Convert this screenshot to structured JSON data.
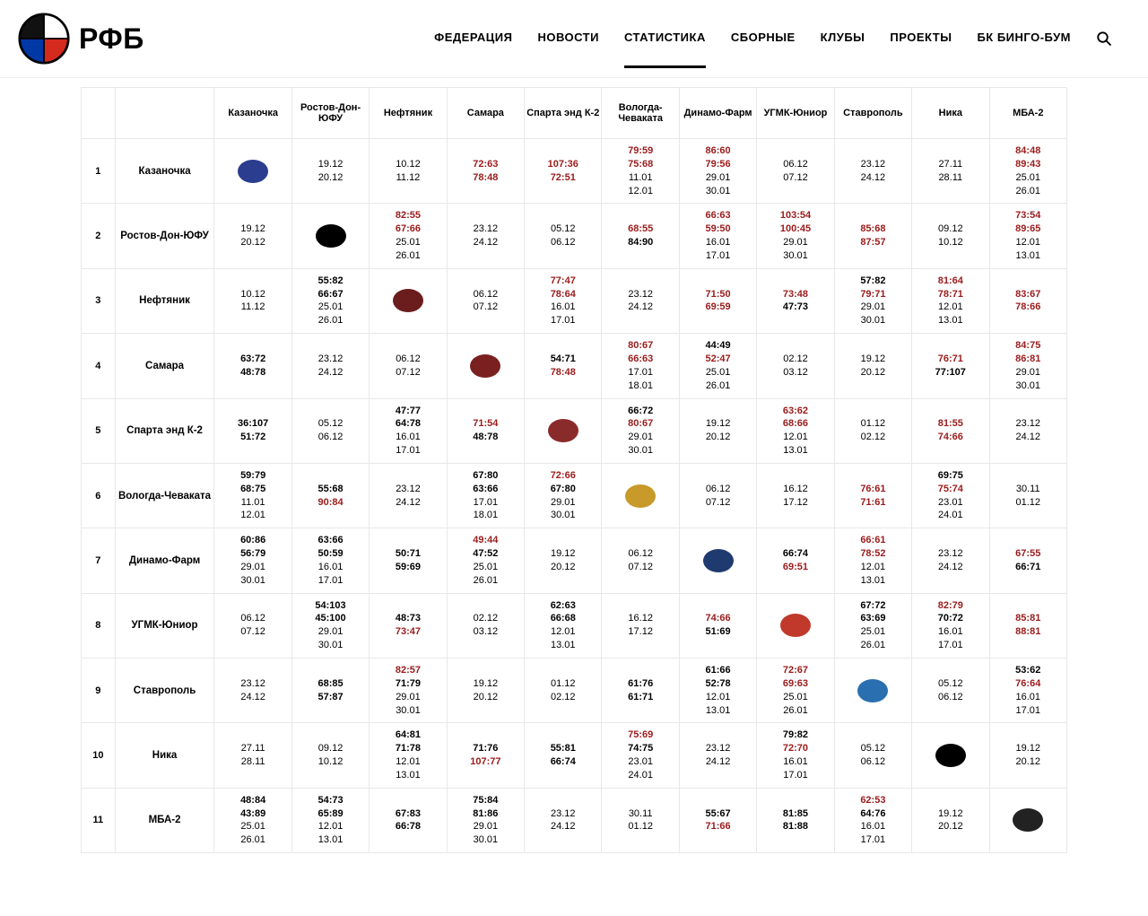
{
  "brand": "РФБ",
  "nav": {
    "items": [
      "ФЕДЕРАЦИЯ",
      "НОВОСТИ",
      "СТАТИСТИКА",
      "СБОРНЫЕ",
      "КЛУБЫ",
      "ПРОЕКТЫ",
      "БК БИНГО-БУМ"
    ],
    "active_index": 2
  },
  "colors": {
    "score_red": "#9a1b1b",
    "border": "#e8e8e8",
    "bg": "#ffffff",
    "text": "#000000"
  },
  "teams": [
    "Казаночка",
    "Ростов-Дон-ЮФУ",
    "Нефтяник",
    "Самара",
    "Спарта энд К-2",
    "Вологда-Чеваката",
    "Динамо-Фарм",
    "УГМК-Юниор",
    "Ставрополь",
    "Ника",
    "МБА-2"
  ],
  "team_logo_bg": [
    "#2a3d8f",
    "#000000",
    "#6b1d1d",
    "#7a2020",
    "#8a2b2b",
    "#c79a2a",
    "#1f3a6e",
    "#c0392b",
    "#2a6fb0",
    "#000000",
    "#222222"
  ],
  "grid": [
    [
      {
        "logo": true
      },
      {
        "dates": [
          "19.12",
          "20.12"
        ]
      },
      {
        "dates": [
          "10.12",
          "11.12"
        ]
      },
      {
        "scores": [
          "72:63",
          "78:48"
        ],
        "red": [
          true,
          true
        ]
      },
      {
        "scores": [
          "107:36",
          "72:51"
        ],
        "red": [
          true,
          true
        ]
      },
      {
        "scores": [
          "79:59",
          "75:68"
        ],
        "red": [
          true,
          true
        ],
        "dates": [
          "11.01",
          "12.01"
        ]
      },
      {
        "scores": [
          "86:60",
          "79:56"
        ],
        "red": [
          true,
          true
        ],
        "dates": [
          "29.01",
          "30.01"
        ]
      },
      {
        "dates": [
          "06.12",
          "07.12"
        ]
      },
      {
        "dates": [
          "23.12",
          "24.12"
        ]
      },
      {
        "dates": [
          "27.11",
          "28.11"
        ]
      },
      {
        "scores": [
          "84:48",
          "89:43"
        ],
        "red": [
          true,
          true
        ],
        "dates": [
          "25.01",
          "26.01"
        ]
      }
    ],
    [
      {
        "dates": [
          "19.12",
          "20.12"
        ]
      },
      {
        "logo": true
      },
      {
        "scores": [
          "82:55",
          "67:66"
        ],
        "red": [
          true,
          true
        ],
        "dates": [
          "25.01",
          "26.01"
        ]
      },
      {
        "dates": [
          "23.12",
          "24.12"
        ]
      },
      {
        "dates": [
          "05.12",
          "06.12"
        ]
      },
      {
        "scores": [
          "68:55",
          "84:90"
        ],
        "red": [
          true,
          false
        ]
      },
      {
        "scores": [
          "66:63",
          "59:50"
        ],
        "red": [
          true,
          true
        ],
        "dates": [
          "16.01",
          "17.01"
        ]
      },
      {
        "scores": [
          "103:54",
          "100:45"
        ],
        "red": [
          true,
          true
        ],
        "dates": [
          "29.01",
          "30.01"
        ]
      },
      {
        "scores": [
          "85:68",
          "87:57"
        ],
        "red": [
          true,
          true
        ]
      },
      {
        "dates": [
          "09.12",
          "10.12"
        ]
      },
      {
        "scores": [
          "73:54",
          "89:65"
        ],
        "red": [
          true,
          true
        ],
        "dates": [
          "12.01",
          "13.01"
        ]
      }
    ],
    [
      {
        "dates": [
          "10.12",
          "11.12"
        ]
      },
      {
        "scores": [
          "55:82",
          "66:67"
        ],
        "red": [
          false,
          false
        ],
        "dates": [
          "25.01",
          "26.01"
        ]
      },
      {
        "logo": true
      },
      {
        "dates": [
          "06.12",
          "07.12"
        ]
      },
      {
        "scores": [
          "77:47",
          "78:64"
        ],
        "red": [
          true,
          true
        ],
        "dates": [
          "16.01",
          "17.01"
        ]
      },
      {
        "dates": [
          "23.12",
          "24.12"
        ]
      },
      {
        "scores": [
          "71:50",
          "69:59"
        ],
        "red": [
          true,
          true
        ]
      },
      {
        "scores": [
          "73:48",
          "47:73"
        ],
        "red": [
          true,
          false
        ]
      },
      {
        "scores": [
          "57:82",
          "79:71"
        ],
        "red": [
          false,
          true
        ],
        "dates": [
          "29.01",
          "30.01"
        ]
      },
      {
        "scores": [
          "81:64",
          "78:71"
        ],
        "red": [
          true,
          true
        ],
        "dates": [
          "12.01",
          "13.01"
        ]
      },
      {
        "scores": [
          "83:67",
          "78:66"
        ],
        "red": [
          true,
          true
        ]
      }
    ],
    [
      {
        "scores": [
          "63:72",
          "48:78"
        ],
        "red": [
          false,
          false
        ]
      },
      {
        "dates": [
          "23.12",
          "24.12"
        ]
      },
      {
        "dates": [
          "06.12",
          "07.12"
        ]
      },
      {
        "logo": true
      },
      {
        "scores": [
          "54:71",
          "78:48"
        ],
        "red": [
          false,
          true
        ]
      },
      {
        "scores": [
          "80:67",
          "66:63"
        ],
        "red": [
          true,
          true
        ],
        "dates": [
          "17.01",
          "18.01"
        ]
      },
      {
        "scores": [
          "44:49",
          "52:47"
        ],
        "red": [
          false,
          true
        ],
        "dates": [
          "25.01",
          "26.01"
        ]
      },
      {
        "dates": [
          "02.12",
          "03.12"
        ]
      },
      {
        "dates": [
          "19.12",
          "20.12"
        ]
      },
      {
        "scores": [
          "76:71",
          "77:107"
        ],
        "red": [
          true,
          false
        ]
      },
      {
        "scores": [
          "84:75",
          "86:81"
        ],
        "red": [
          true,
          true
        ],
        "dates": [
          "29.01",
          "30.01"
        ]
      }
    ],
    [
      {
        "scores": [
          "36:107",
          "51:72"
        ],
        "red": [
          false,
          false
        ]
      },
      {
        "dates": [
          "05.12",
          "06.12"
        ]
      },
      {
        "scores": [
          "47:77",
          "64:78"
        ],
        "red": [
          false,
          false
        ],
        "dates": [
          "16.01",
          "17.01"
        ]
      },
      {
        "scores": [
          "71:54",
          "48:78"
        ],
        "red": [
          true,
          false
        ]
      },
      {
        "logo": true
      },
      {
        "scores": [
          "66:72",
          "80:67"
        ],
        "red": [
          false,
          true
        ],
        "dates": [
          "29.01",
          "30.01"
        ]
      },
      {
        "dates": [
          "19.12",
          "20.12"
        ]
      },
      {
        "scores": [
          "63:62",
          "68:66"
        ],
        "red": [
          true,
          true
        ],
        "dates": [
          "12.01",
          "13.01"
        ]
      },
      {
        "dates": [
          "01.12",
          "02.12"
        ]
      },
      {
        "scores": [
          "81:55",
          "74:66"
        ],
        "red": [
          true,
          true
        ]
      },
      {
        "dates": [
          "23.12",
          "24.12"
        ]
      }
    ],
    [
      {
        "scores": [
          "59:79",
          "68:75"
        ],
        "red": [
          false,
          false
        ],
        "dates": [
          "11.01",
          "12.01"
        ]
      },
      {
        "scores": [
          "55:68",
          "90:84"
        ],
        "red": [
          false,
          true
        ]
      },
      {
        "dates": [
          "23.12",
          "24.12"
        ]
      },
      {
        "scores": [
          "67:80",
          "63:66"
        ],
        "red": [
          false,
          false
        ],
        "dates": [
          "17.01",
          "18.01"
        ]
      },
      {
        "scores": [
          "72:66",
          "67:80"
        ],
        "red": [
          true,
          false
        ],
        "dates": [
          "29.01",
          "30.01"
        ]
      },
      {
        "logo": true
      },
      {
        "dates": [
          "06.12",
          "07.12"
        ]
      },
      {
        "dates": [
          "16.12",
          "17.12"
        ]
      },
      {
        "scores": [
          "76:61",
          "71:61"
        ],
        "red": [
          true,
          true
        ]
      },
      {
        "scores": [
          "69:75",
          "75:74"
        ],
        "red": [
          false,
          true
        ],
        "dates": [
          "23.01",
          "24.01"
        ]
      },
      {
        "dates": [
          "30.11",
          "01.12"
        ]
      }
    ],
    [
      {
        "scores": [
          "60:86",
          "56:79"
        ],
        "red": [
          false,
          false
        ],
        "dates": [
          "29.01",
          "30.01"
        ]
      },
      {
        "scores": [
          "63:66",
          "50:59"
        ],
        "red": [
          false,
          false
        ],
        "dates": [
          "16.01",
          "17.01"
        ]
      },
      {
        "scores": [
          "50:71",
          "59:69"
        ],
        "red": [
          false,
          false
        ]
      },
      {
        "scores": [
          "49:44",
          "47:52"
        ],
        "red": [
          true,
          false
        ],
        "dates": [
          "25.01",
          "26.01"
        ]
      },
      {
        "dates": [
          "19.12",
          "20.12"
        ]
      },
      {
        "dates": [
          "06.12",
          "07.12"
        ]
      },
      {
        "logo": true
      },
      {
        "scores": [
          "66:74",
          "69:51"
        ],
        "red": [
          false,
          true
        ]
      },
      {
        "scores": [
          "66:61",
          "78:52"
        ],
        "red": [
          true,
          true
        ],
        "dates": [
          "12.01",
          "13.01"
        ]
      },
      {
        "dates": [
          "23.12",
          "24.12"
        ]
      },
      {
        "scores": [
          "67:55",
          "66:71"
        ],
        "red": [
          true,
          false
        ]
      }
    ],
    [
      {
        "dates": [
          "06.12",
          "07.12"
        ]
      },
      {
        "scores": [
          "54:103",
          "45:100"
        ],
        "red": [
          false,
          false
        ],
        "dates": [
          "29.01",
          "30.01"
        ]
      },
      {
        "scores": [
          "48:73",
          "73:47"
        ],
        "red": [
          false,
          true
        ]
      },
      {
        "dates": [
          "02.12",
          "03.12"
        ]
      },
      {
        "scores": [
          "62:63",
          "66:68"
        ],
        "red": [
          false,
          false
        ],
        "dates": [
          "12.01",
          "13.01"
        ]
      },
      {
        "dates": [
          "16.12",
          "17.12"
        ]
      },
      {
        "scores": [
          "74:66",
          "51:69"
        ],
        "red": [
          true,
          false
        ]
      },
      {
        "logo": true
      },
      {
        "scores": [
          "67:72",
          "63:69"
        ],
        "red": [
          false,
          false
        ],
        "dates": [
          "25.01",
          "26.01"
        ]
      },
      {
        "scores": [
          "82:79",
          "70:72"
        ],
        "red": [
          true,
          false
        ],
        "dates": [
          "16.01",
          "17.01"
        ]
      },
      {
        "scores": [
          "85:81",
          "88:81"
        ],
        "red": [
          true,
          true
        ]
      }
    ],
    [
      {
        "dates": [
          "23.12",
          "24.12"
        ]
      },
      {
        "scores": [
          "68:85",
          "57:87"
        ],
        "red": [
          false,
          false
        ]
      },
      {
        "scores": [
          "82:57",
          "71:79"
        ],
        "red": [
          true,
          false
        ],
        "dates": [
          "29.01",
          "30.01"
        ]
      },
      {
        "dates": [
          "19.12",
          "20.12"
        ]
      },
      {
        "dates": [
          "01.12",
          "02.12"
        ]
      },
      {
        "scores": [
          "61:76",
          "61:71"
        ],
        "red": [
          false,
          false
        ]
      },
      {
        "scores": [
          "61:66",
          "52:78"
        ],
        "red": [
          false,
          false
        ],
        "dates": [
          "12.01",
          "13.01"
        ]
      },
      {
        "scores": [
          "72:67",
          "69:63"
        ],
        "red": [
          true,
          true
        ],
        "dates": [
          "25.01",
          "26.01"
        ]
      },
      {
        "logo": true
      },
      {
        "dates": [
          "05.12",
          "06.12"
        ]
      },
      {
        "scores": [
          "53:62",
          "76:64"
        ],
        "red": [
          false,
          true
        ],
        "dates": [
          "16.01",
          "17.01"
        ]
      }
    ],
    [
      {
        "dates": [
          "27.11",
          "28.11"
        ]
      },
      {
        "dates": [
          "09.12",
          "10.12"
        ]
      },
      {
        "scores": [
          "64:81",
          "71:78"
        ],
        "red": [
          false,
          false
        ],
        "dates": [
          "12.01",
          "13.01"
        ]
      },
      {
        "scores": [
          "71:76",
          "107:77"
        ],
        "red": [
          false,
          true
        ]
      },
      {
        "scores": [
          "55:81",
          "66:74"
        ],
        "red": [
          false,
          false
        ]
      },
      {
        "scores": [
          "75:69",
          "74:75"
        ],
        "red": [
          true,
          false
        ],
        "dates": [
          "23.01",
          "24.01"
        ]
      },
      {
        "dates": [
          "23.12",
          "24.12"
        ]
      },
      {
        "scores": [
          "79:82",
          "72:70"
        ],
        "red": [
          false,
          true
        ],
        "dates": [
          "16.01",
          "17.01"
        ]
      },
      {
        "dates": [
          "05.12",
          "06.12"
        ]
      },
      {
        "logo": true
      },
      {
        "dates": [
          "19.12",
          "20.12"
        ]
      }
    ],
    [
      {
        "scores": [
          "48:84",
          "43:89"
        ],
        "red": [
          false,
          false
        ],
        "dates": [
          "25.01",
          "26.01"
        ]
      },
      {
        "scores": [
          "54:73",
          "65:89"
        ],
        "red": [
          false,
          false
        ],
        "dates": [
          "12.01",
          "13.01"
        ]
      },
      {
        "scores": [
          "67:83",
          "66:78"
        ],
        "red": [
          false,
          false
        ]
      },
      {
        "scores": [
          "75:84",
          "81:86"
        ],
        "red": [
          false,
          false
        ],
        "dates": [
          "29.01",
          "30.01"
        ]
      },
      {
        "dates": [
          "23.12",
          "24.12"
        ]
      },
      {
        "dates": [
          "30.11",
          "01.12"
        ]
      },
      {
        "scores": [
          "55:67",
          "71:66"
        ],
        "red": [
          false,
          true
        ]
      },
      {
        "scores": [
          "81:85",
          "81:88"
        ],
        "red": [
          false,
          false
        ]
      },
      {
        "scores": [
          "62:53",
          "64:76"
        ],
        "red": [
          true,
          false
        ],
        "dates": [
          "16.01",
          "17.01"
        ]
      },
      {
        "dates": [
          "19.12",
          "20.12"
        ]
      },
      {
        "logo": true
      }
    ]
  ]
}
